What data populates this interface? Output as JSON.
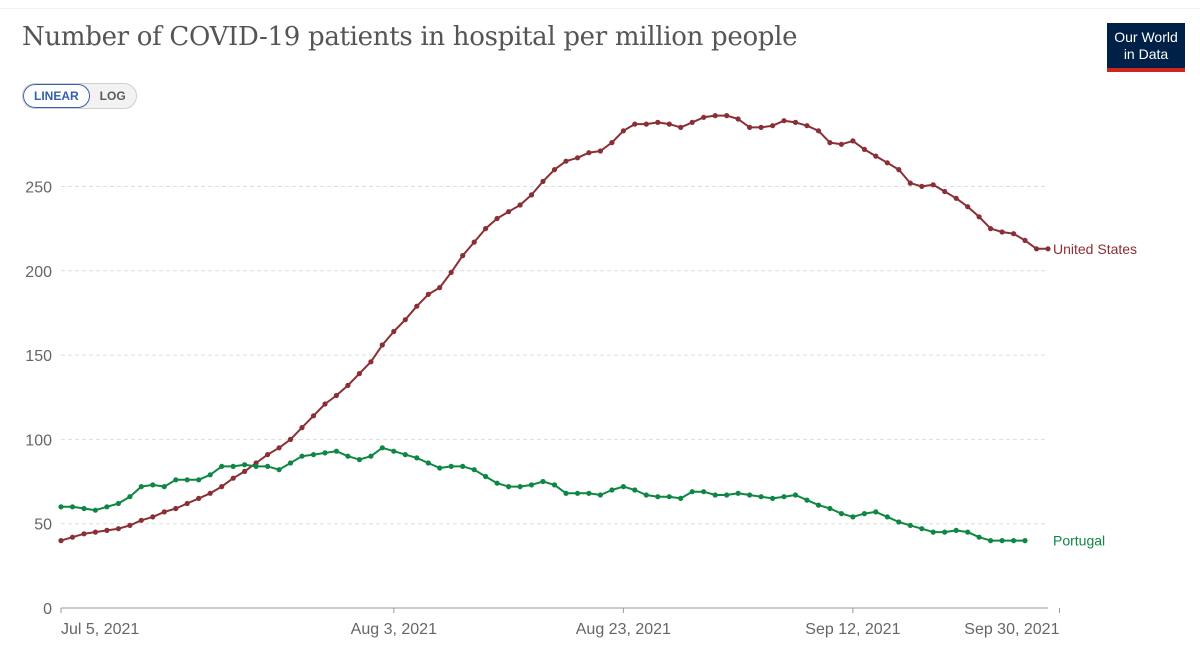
{
  "header": {
    "title": "Number of COVID-19 patients in hospital per million people",
    "logo_line1": "Our World",
    "logo_line2": "in Data"
  },
  "controls": {
    "linear_label": "LINEAR",
    "log_label": "LOG",
    "selected": "LINEAR"
  },
  "colors": {
    "us": "#8b2f36",
    "portugal": "#0f8744",
    "grid": "#dddddd",
    "axis": "#999999"
  },
  "chart_data": {
    "type": "line",
    "title": "Number of COVID-19 patients in hospital per million people",
    "xlabel": "",
    "ylabel": "",
    "ylim": [
      0,
      290
    ],
    "yticks": [
      0,
      50,
      100,
      150,
      200,
      250
    ],
    "x_start": "2021-07-05",
    "xticks": [
      {
        "day": 0,
        "label": "Jul 5, 2021"
      },
      {
        "day": 29,
        "label": "Aug 3, 2021"
      },
      {
        "day": 49,
        "label": "Aug 23, 2021"
      },
      {
        "day": 69,
        "label": "Sep 12, 2021"
      },
      {
        "day": 87,
        "label": "Sep 30, 2021"
      }
    ],
    "series": [
      {
        "name": "United States",
        "color": "#8b2f36",
        "values": [
          40,
          42,
          44,
          45,
          46,
          47,
          49,
          52,
          54,
          57,
          59,
          62,
          65,
          68,
          72,
          77,
          81,
          86,
          91,
          95,
          100,
          107,
          114,
          121,
          126,
          132,
          139,
          146,
          156,
          164,
          171,
          179,
          186,
          190,
          199,
          209,
          217,
          225,
          231,
          235,
          239,
          245,
          253,
          260,
          265,
          267,
          270,
          271,
          276,
          283,
          287,
          287,
          288,
          287,
          285,
          288,
          291,
          292,
          292,
          290,
          285,
          285,
          286,
          289,
          288,
          286,
          283,
          276,
          275,
          277,
          272,
          268,
          264,
          260,
          252,
          250,
          251,
          247,
          243,
          238,
          232,
          225,
          223,
          222,
          218,
          213,
          213
        ]
      },
      {
        "name": "Portugal",
        "color": "#0f8744",
        "values": [
          60,
          60,
          59,
          58,
          60,
          62,
          66,
          72,
          73,
          72,
          76,
          76,
          76,
          79,
          84,
          84,
          85,
          84,
          84,
          82,
          86,
          90,
          91,
          92,
          93,
          90,
          88,
          90,
          95,
          93,
          91,
          89,
          86,
          83,
          84,
          84,
          82,
          78,
          74,
          72,
          72,
          73,
          75,
          73,
          68,
          68,
          68,
          67,
          70,
          72,
          70,
          67,
          66,
          66,
          65,
          69,
          69,
          67,
          67,
          68,
          67,
          66,
          65,
          66,
          67,
          64,
          61,
          59,
          56,
          54,
          56,
          57,
          54,
          51,
          49,
          47,
          45,
          45,
          46,
          45,
          42,
          40,
          40,
          40,
          40,
          null,
          null
        ]
      }
    ]
  }
}
